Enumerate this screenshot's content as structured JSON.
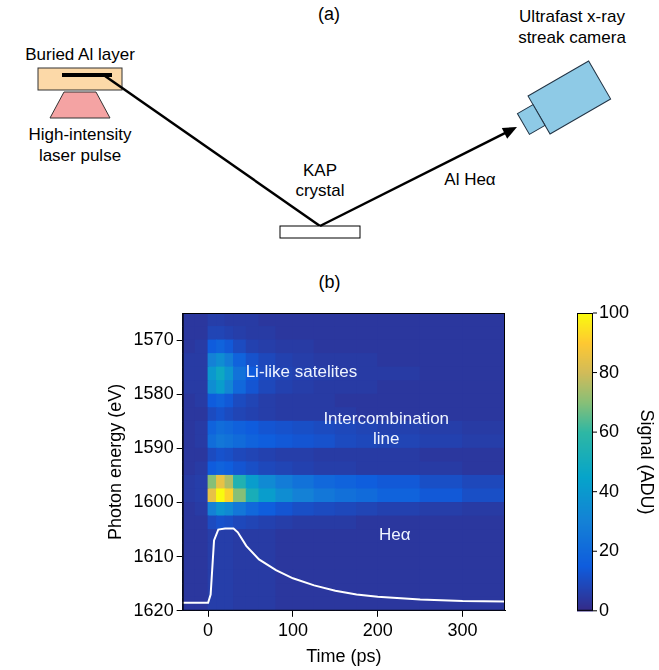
{
  "diagram": {
    "panel_label": "(a)",
    "target": "Buried Al layer",
    "laser": "High-intensity laser pulse",
    "crystal": "KAP crystal",
    "detector": "Ultrafast x-ray streak camera",
    "beam": "Al Heα"
  },
  "chart_data": {
    "type": "heatmap",
    "panel_label": "(b)",
    "x_label": "Time (ps)",
    "y_label": "Photon energy (eV)",
    "xlim": [
      -30,
      350
    ],
    "xticks": [
      0,
      100,
      200,
      300
    ],
    "ylim": [
      1620,
      1565
    ],
    "yticks": [
      1570,
      1580,
      1590,
      1600,
      1610,
      1620
    ],
    "grid": false,
    "heatmap": {
      "x_edges": [
        -30,
        -15,
        0,
        10,
        20,
        30,
        45,
        60,
        80,
        100,
        125,
        150,
        175,
        200,
        250,
        300,
        350
      ],
      "y_edges": [
        1565,
        1567.5,
        1570,
        1572.5,
        1575,
        1577.5,
        1580,
        1582.5,
        1585,
        1587.5,
        1590,
        1592.5,
        1595,
        1597.5,
        1600,
        1602.5,
        1605,
        1607.5,
        1610,
        1612.5,
        1615,
        1617.5,
        1620
      ],
      "cells": [
        [
          4,
          4,
          6,
          6,
          5,
          5,
          5,
          4,
          4,
          4,
          4,
          4,
          4,
          4,
          4,
          4
        ],
        [
          4,
          4,
          8,
          8,
          7,
          6,
          5,
          5,
          4,
          4,
          4,
          4,
          4,
          4,
          4,
          4
        ],
        [
          4,
          5,
          15,
          18,
          14,
          10,
          7,
          6,
          5,
          5,
          4,
          4,
          4,
          4,
          4,
          4
        ],
        [
          5,
          5,
          30,
          35,
          28,
          18,
          12,
          9,
          7,
          6,
          5,
          5,
          5,
          4,
          4,
          4
        ],
        [
          5,
          5,
          40,
          48,
          38,
          24,
          15,
          10,
          8,
          7,
          6,
          5,
          5,
          5,
          4,
          4
        ],
        [
          5,
          5,
          35,
          42,
          32,
          20,
          13,
          9,
          7,
          6,
          5,
          5,
          5,
          4,
          4,
          4
        ],
        [
          4,
          5,
          15,
          18,
          14,
          10,
          8,
          6,
          5,
          5,
          5,
          4,
          4,
          4,
          4,
          4
        ],
        [
          4,
          4,
          10,
          12,
          10,
          8,
          7,
          6,
          5,
          5,
          5,
          5,
          4,
          4,
          4,
          4
        ],
        [
          4,
          5,
          18,
          22,
          20,
          17,
          15,
          13,
          12,
          11,
          10,
          9,
          8,
          7,
          6,
          5
        ],
        [
          4,
          5,
          22,
          26,
          24,
          21,
          18,
          16,
          14,
          13,
          12,
          10,
          9,
          8,
          7,
          6
        ],
        [
          4,
          4,
          10,
          12,
          11,
          9,
          8,
          7,
          6,
          6,
          5,
          5,
          5,
          5,
          4,
          4
        ],
        [
          4,
          5,
          15,
          18,
          16,
          13,
          11,
          9,
          8,
          7,
          6,
          6,
          5,
          5,
          5,
          4
        ],
        [
          5,
          6,
          70,
          85,
          75,
          55,
          42,
          34,
          28,
          24,
          20,
          18,
          16,
          14,
          11,
          9
        ],
        [
          5,
          6,
          85,
          100,
          92,
          70,
          52,
          42,
          35,
          30,
          26,
          23,
          21,
          18,
          14,
          11
        ],
        [
          4,
          5,
          30,
          38,
          34,
          26,
          20,
          16,
          13,
          11,
          10,
          9,
          8,
          7,
          6,
          5
        ],
        [
          4,
          4,
          10,
          12,
          11,
          9,
          8,
          7,
          6,
          5,
          5,
          5,
          4,
          4,
          4,
          4
        ],
        [
          4,
          4,
          6,
          6,
          6,
          5,
          5,
          5,
          4,
          4,
          4,
          4,
          4,
          4,
          4,
          4
        ],
        [
          4,
          4,
          6,
          6,
          6,
          5,
          5,
          5,
          4,
          4,
          4,
          4,
          4,
          4,
          4,
          4
        ],
        [
          4,
          4,
          6,
          6,
          6,
          5,
          5,
          5,
          4,
          4,
          4,
          4,
          4,
          4,
          4,
          4
        ],
        [
          4,
          4,
          6,
          6,
          6,
          5,
          5,
          5,
          4,
          4,
          4,
          4,
          4,
          4,
          4,
          4
        ],
        [
          4,
          4,
          6,
          6,
          6,
          5,
          5,
          5,
          4,
          4,
          4,
          4,
          4,
          4,
          4,
          4
        ],
        [
          4,
          4,
          6,
          6,
          6,
          5,
          5,
          5,
          4,
          4,
          4,
          4,
          4,
          4,
          4,
          4
        ]
      ]
    },
    "colorbar": {
      "label": "Signal (ADU)",
      "range": [
        0,
        100
      ],
      "ticks": [
        0,
        20,
        40,
        60,
        80,
        100
      ]
    },
    "lineout": {
      "color": "#ffffff",
      "x": [
        -30,
        -15,
        0,
        3,
        7,
        12,
        20,
        30,
        35,
        45,
        60,
        80,
        100,
        125,
        150,
        175,
        200,
        250,
        300,
        350
      ],
      "y": [
        1618.5,
        1618.5,
        1618.5,
        1617,
        1607,
        1605,
        1604.8,
        1604.8,
        1605.5,
        1608,
        1610.5,
        1612.5,
        1614,
        1615.3,
        1616.3,
        1617,
        1617.4,
        1617.9,
        1618.2,
        1618.3
      ]
    },
    "annotations": [
      {
        "text": "Li-like satelites",
        "x": 110,
        "y": 1576
      },
      {
        "text": "Intercombination line",
        "x": 210,
        "y": 1586.5
      },
      {
        "text": "Heα",
        "x": 220,
        "y": 1606
      }
    ]
  }
}
